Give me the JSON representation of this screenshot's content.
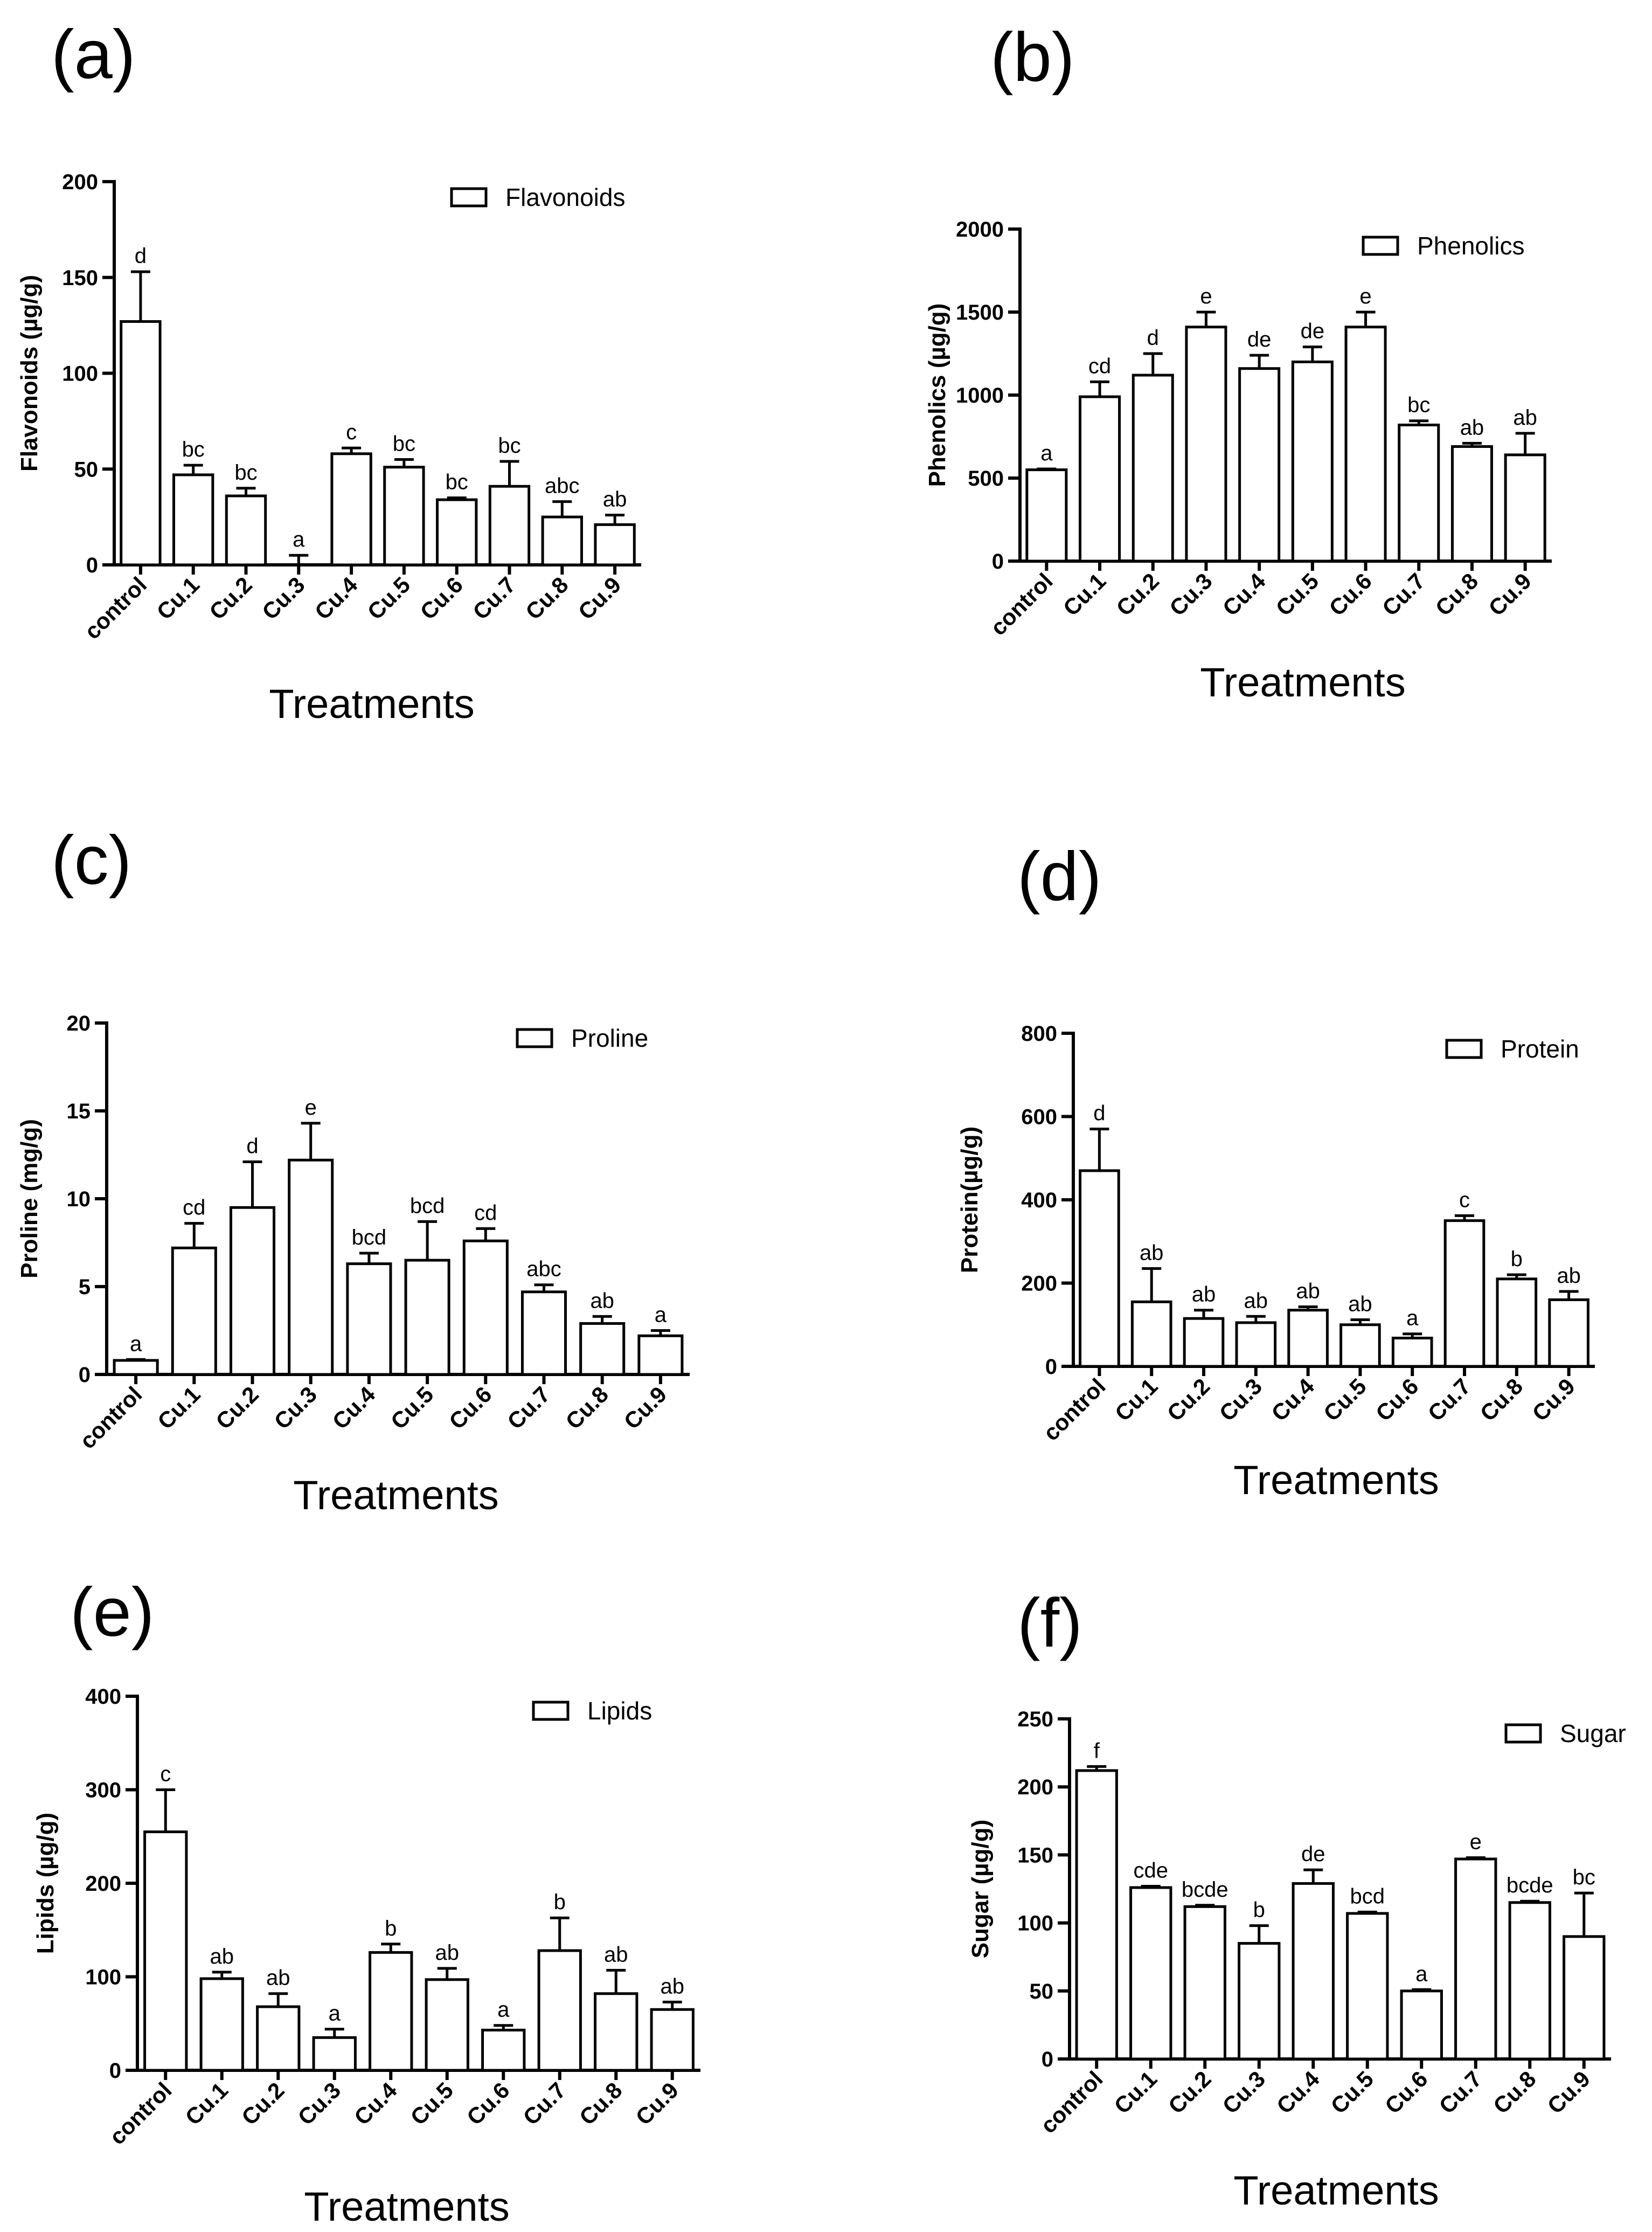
{
  "chart_data": [
    {
      "type": "bar",
      "panel_label": "(a)",
      "title": "",
      "xlabel": "Treatments",
      "ylabel": "Flavonoids (µg/g)",
      "legend": "Flavonoids",
      "legend_position": "top-right",
      "categories": [
        "control",
        "Cu.1",
        "Cu.2",
        "Cu.3",
        "Cu.4",
        "Cu.5",
        "Cu.6",
        "Cu.7",
        "Cu.8",
        "Cu.9"
      ],
      "values": [
        127,
        47,
        36,
        0,
        58,
        51,
        34,
        41,
        25,
        21
      ],
      "errors": [
        26,
        5,
        4,
        5,
        3,
        4,
        1,
        13,
        8,
        5
      ],
      "significance": [
        "d",
        "bc",
        "bc",
        "a",
        "c",
        "bc",
        "bc",
        "bc",
        "abc",
        "ab"
      ],
      "ylim": [
        0,
        200
      ],
      "yticks": [
        0,
        50,
        100,
        150,
        200
      ]
    },
    {
      "type": "bar",
      "panel_label": "(b)",
      "title": "",
      "xlabel": "Treatments",
      "ylabel": "Phenolics (µg/g)",
      "legend": "Phenolics",
      "legend_position": "top-right",
      "categories": [
        "control",
        "Cu.1",
        "Cu.2",
        "Cu.3",
        "Cu.4",
        "Cu.5",
        "Cu.6",
        "Cu.7",
        "Cu.8",
        "Cu.9"
      ],
      "values": [
        550,
        990,
        1120,
        1410,
        1160,
        1200,
        1410,
        820,
        690,
        640
      ],
      "errors": [
        5,
        90,
        130,
        90,
        80,
        90,
        90,
        25,
        20,
        130
      ],
      "significance": [
        "a",
        "cd",
        "d",
        "e",
        "de",
        "de",
        "e",
        "bc",
        "ab",
        "ab"
      ],
      "ylim": [
        0,
        2000
      ],
      "yticks": [
        0,
        500,
        1000,
        1500,
        2000
      ]
    },
    {
      "type": "bar",
      "panel_label": "(c)",
      "title": "",
      "xlabel": "Treatments",
      "ylabel": "Proline (mg/g)",
      "legend": "Proline",
      "legend_position": "top-right",
      "categories": [
        "control",
        "Cu.1",
        "Cu.2",
        "Cu.3",
        "Cu.4",
        "Cu.5",
        "Cu.6",
        "Cu.7",
        "Cu.8",
        "Cu.9"
      ],
      "values": [
        0.8,
        7.2,
        9.5,
        12.2,
        6.3,
        6.5,
        7.6,
        4.7,
        2.9,
        2.2
      ],
      "errors": [
        0.05,
        1.4,
        2.6,
        2.1,
        0.6,
        2.2,
        0.7,
        0.4,
        0.4,
        0.3
      ],
      "significance": [
        "a",
        "cd",
        "d",
        "e",
        "bcd",
        "bcd",
        "cd",
        "abc",
        "ab",
        "a"
      ],
      "ylim": [
        0,
        20
      ],
      "yticks": [
        0,
        5,
        10,
        15,
        20
      ]
    },
    {
      "type": "bar",
      "panel_label": "(d)",
      "title": "",
      "xlabel": "Treatments",
      "ylabel": "Protein(µg/g)",
      "legend": "Protein",
      "legend_position": "top-right",
      "categories": [
        "control",
        "Cu.1",
        "Cu.2",
        "Cu.3",
        "Cu.4",
        "Cu.5",
        "Cu.6",
        "Cu.7",
        "Cu.8",
        "Cu.9"
      ],
      "values": [
        470,
        155,
        115,
        105,
        135,
        100,
        68,
        350,
        210,
        160
      ],
      "errors": [
        100,
        80,
        20,
        15,
        8,
        12,
        10,
        12,
        10,
        20
      ],
      "significance": [
        "d",
        "ab",
        "ab",
        "ab",
        "ab",
        "ab",
        "a",
        "c",
        "b",
        "ab"
      ],
      "ylim": [
        0,
        800
      ],
      "yticks": [
        0,
        200,
        400,
        600,
        800
      ]
    },
    {
      "type": "bar",
      "panel_label": "(e)",
      "title": "",
      "xlabel": "Treatments",
      "ylabel": "Lipids (µg/g)",
      "legend": "Lipids",
      "legend_position": "top-right",
      "categories": [
        "control",
        "Cu.1",
        "Cu.2",
        "Cu.3",
        "Cu.4",
        "Cu.5",
        "Cu.6",
        "Cu.7",
        "Cu.8",
        "Cu.9"
      ],
      "values": [
        255,
        98,
        68,
        35,
        126,
        97,
        43,
        128,
        82,
        65
      ],
      "errors": [
        45,
        7,
        14,
        9,
        9,
        12,
        5,
        35,
        25,
        8
      ],
      "significance": [
        "c",
        "ab",
        "ab",
        "a",
        "b",
        "ab",
        "a",
        "b",
        "ab",
        "ab"
      ],
      "ylim": [
        0,
        400
      ],
      "yticks": [
        0,
        100,
        200,
        300,
        400
      ]
    },
    {
      "type": "bar",
      "panel_label": "(f)",
      "title": "",
      "xlabel": "Treatments",
      "ylabel": "Sugar (µg/g)",
      "legend": "Sugar",
      "legend_position": "top-right",
      "categories": [
        "control",
        "Cu.1",
        "Cu.2",
        "Cu.3",
        "Cu.4",
        "Cu.5",
        "Cu.6",
        "Cu.7",
        "Cu.8",
        "Cu.9"
      ],
      "values": [
        212,
        126,
        112,
        85,
        129,
        107,
        50,
        147,
        115,
        90
      ],
      "errors": [
        3,
        1,
        1,
        13,
        10,
        1,
        1,
        1,
        1,
        32
      ],
      "significance": [
        "f",
        "cde",
        "bcde",
        "b",
        "de",
        "bcd",
        "a",
        "e",
        "bcde",
        "bc"
      ],
      "ylim": [
        0,
        250
      ],
      "yticks": [
        0,
        50,
        100,
        150,
        200,
        250
      ]
    }
  ]
}
